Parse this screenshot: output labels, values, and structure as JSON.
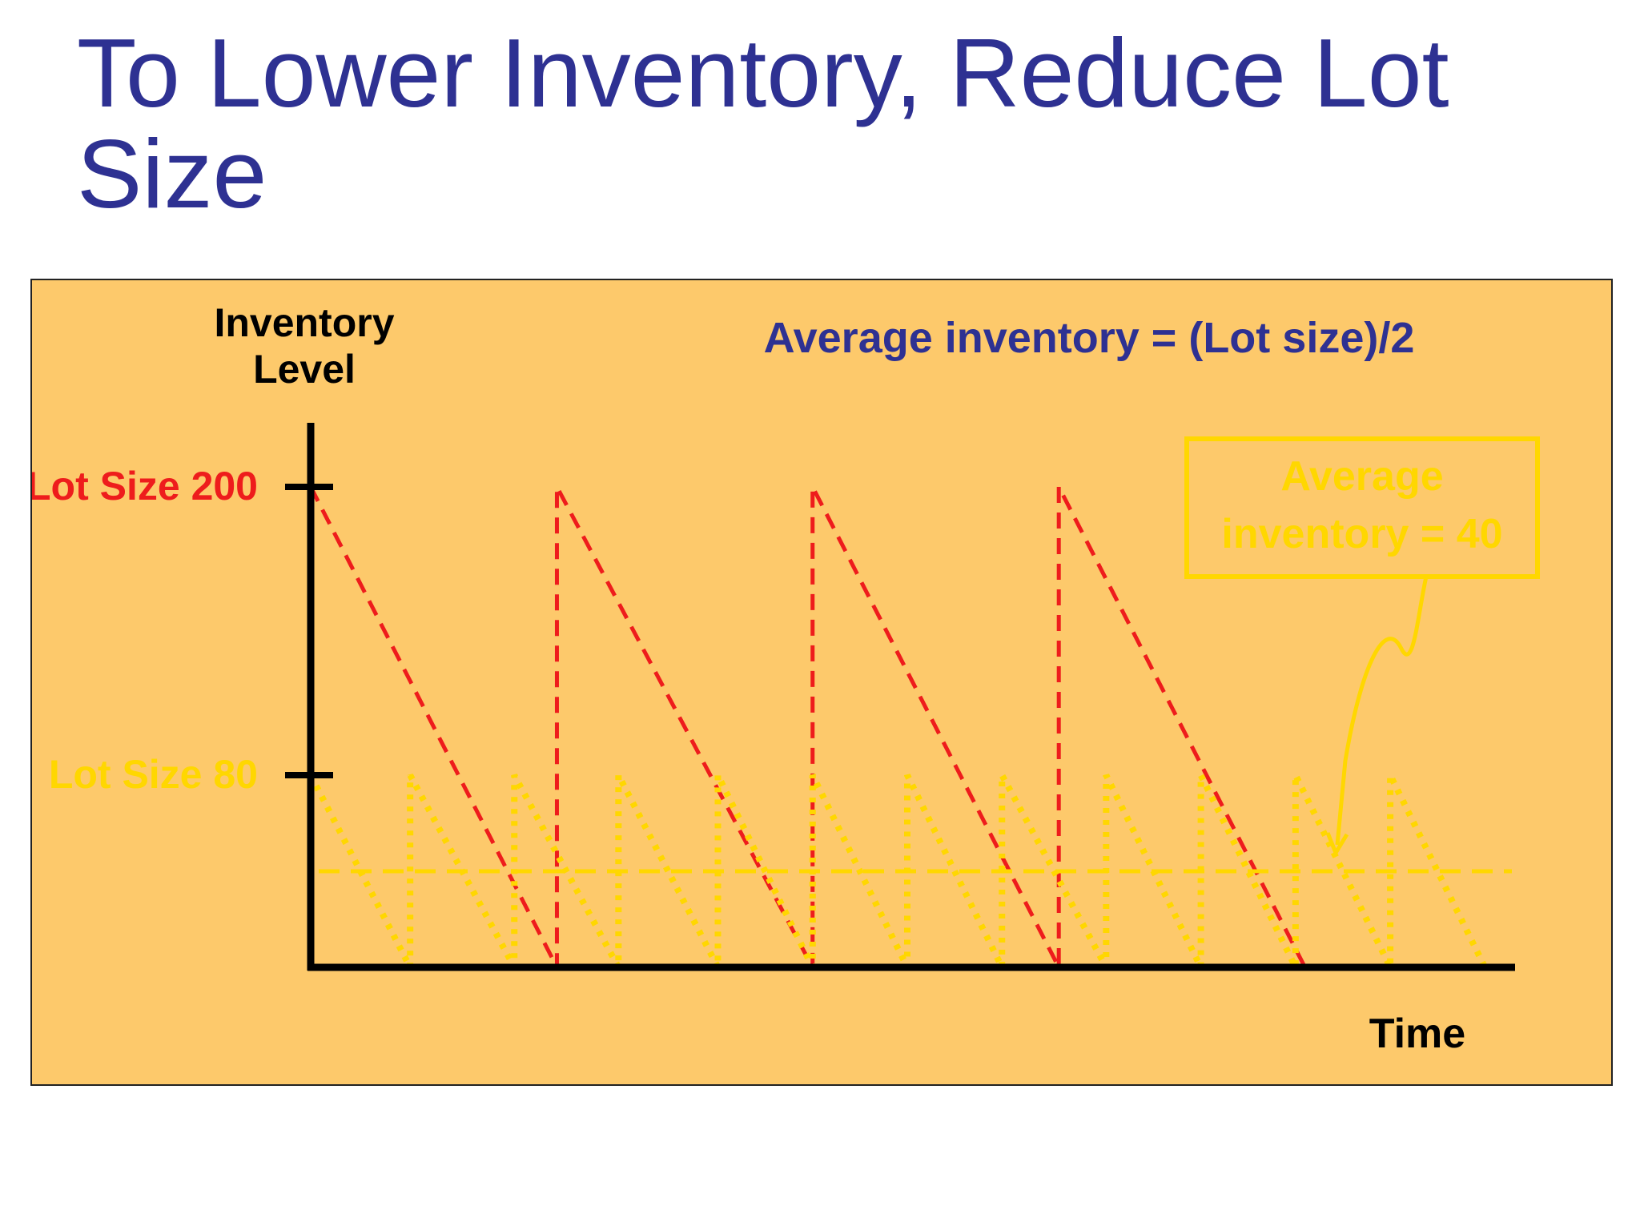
{
  "slide": {
    "title_line1": "To Lower Inventory, Reduce Lot",
    "title_line2": "Size"
  },
  "colors": {
    "title": "#2e3192",
    "panel_background": "#fdc96b",
    "axis": "#000000",
    "lot200": "#ee1c1c",
    "lot80": "#ffd700",
    "formula": "#2e3192"
  },
  "chart_data": {
    "type": "line",
    "ylabel_line1": "Inventory",
    "ylabel_line2": "Level",
    "xlabel": "Time",
    "formula": "Average inventory = (Lot size)/2",
    "y_ticks": [
      {
        "value": 200,
        "label": "Lot Size 200",
        "series": "lot200"
      },
      {
        "value": 80,
        "label": "Lot Size 80",
        "series": "lot80"
      }
    ],
    "ylim": [
      0,
      200
    ],
    "xlim": [
      0,
      12.6
    ],
    "grid": false,
    "series": [
      {
        "key": "lot200",
        "lot_size": 200,
        "line_style": "dashed",
        "points": [
          [
            0,
            200
          ],
          [
            2.6,
            0
          ],
          [
            2.6,
            200
          ],
          [
            5.3,
            0
          ],
          [
            5.3,
            200
          ],
          [
            7.9,
            0
          ],
          [
            7.9,
            200
          ],
          [
            10.5,
            0
          ]
        ]
      },
      {
        "key": "lot80",
        "lot_size": 80,
        "line_style": "dotted",
        "points": [
          [
            0,
            80
          ],
          [
            1.05,
            0
          ],
          [
            1.05,
            80
          ],
          [
            2.15,
            0
          ],
          [
            2.15,
            80
          ],
          [
            3.25,
            0
          ],
          [
            3.25,
            80
          ],
          [
            4.3,
            0
          ],
          [
            4.3,
            80
          ],
          [
            5.3,
            0
          ],
          [
            5.3,
            80
          ],
          [
            6.3,
            0
          ],
          [
            6.3,
            80
          ],
          [
            7.3,
            0
          ],
          [
            7.3,
            80
          ],
          [
            8.4,
            0
          ],
          [
            8.4,
            80
          ],
          [
            9.4,
            0
          ],
          [
            9.4,
            80
          ],
          [
            10.4,
            0
          ],
          [
            10.4,
            80
          ],
          [
            11.4,
            0
          ],
          [
            11.4,
            80
          ],
          [
            12.4,
            0
          ]
        ]
      }
    ],
    "average_line": {
      "value": 40,
      "series": "lot80"
    },
    "callout": {
      "line1": "Average",
      "line2": "inventory = 40"
    }
  }
}
